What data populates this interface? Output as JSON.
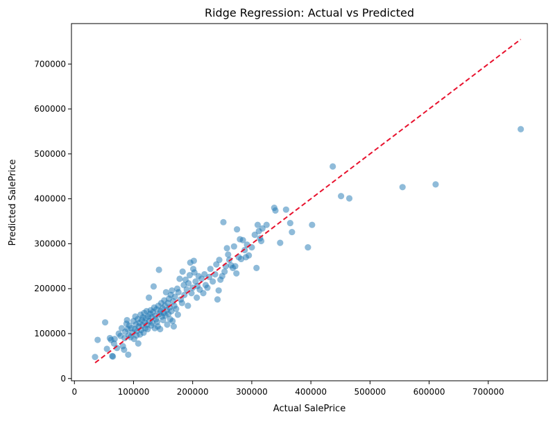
{
  "chart_data": {
    "type": "scatter",
    "title": "Ridge Regression: Actual vs Predicted",
    "xlabel": "Actual SalePrice",
    "ylabel": "Predicted SalePrice",
    "xlim": [
      -5000,
      800000
    ],
    "ylim": [
      -5000,
      790000
    ],
    "xticks": [
      0,
      100000,
      200000,
      300000,
      400000,
      500000,
      600000,
      700000
    ],
    "xtick_labels": [
      "0",
      "100000",
      "200000",
      "300000",
      "400000",
      "500000",
      "600000",
      "700000"
    ],
    "yticks": [
      0,
      100000,
      200000,
      300000,
      400000,
      500000,
      600000,
      700000
    ],
    "ytick_labels": [
      "0",
      "100000",
      "200000",
      "300000",
      "400000",
      "500000",
      "600000",
      "700000"
    ],
    "grid": false,
    "point_color": "#1f77b4",
    "point_alpha": 0.5,
    "reference_line": {
      "style": "dashed",
      "color": "#e8112d",
      "from": [
        35000,
        35000
      ],
      "to": [
        755000,
        755000
      ]
    },
    "points": [
      [
        34900,
        48000
      ],
      [
        39300,
        86000
      ],
      [
        52000,
        125000
      ],
      [
        55000,
        66000
      ],
      [
        60000,
        90000
      ],
      [
        62000,
        86000
      ],
      [
        64000,
        50000
      ],
      [
        65000,
        49000
      ],
      [
        67000,
        78000
      ],
      [
        68000,
        88000
      ],
      [
        72000,
        68000
      ],
      [
        75000,
        100000
      ],
      [
        78000,
        95000
      ],
      [
        80000,
        112000
      ],
      [
        82000,
        72000
      ],
      [
        84000,
        64000
      ],
      [
        85000,
        90000
      ],
      [
        86000,
        104000
      ],
      [
        88000,
        122000
      ],
      [
        89000,
        130000
      ],
      [
        90000,
        110000
      ],
      [
        91000,
        53000
      ],
      [
        92000,
        96000
      ],
      [
        93000,
        118000
      ],
      [
        95000,
        92000
      ],
      [
        96000,
        112000
      ],
      [
        98000,
        102000
      ],
      [
        100000,
        128000
      ],
      [
        101000,
        88000
      ],
      [
        102000,
        110000
      ],
      [
        103000,
        138000
      ],
      [
        104000,
        120000
      ],
      [
        105000,
        96000
      ],
      [
        106000,
        106000
      ],
      [
        107000,
        132000
      ],
      [
        108000,
        78000
      ],
      [
        109000,
        116000
      ],
      [
        110000,
        124000
      ],
      [
        111000,
        98000
      ],
      [
        112000,
        142000
      ],
      [
        113000,
        108000
      ],
      [
        114000,
        130000
      ],
      [
        115000,
        118000
      ],
      [
        116000,
        136000
      ],
      [
        117000,
        102000
      ],
      [
        118000,
        146000
      ],
      [
        119000,
        125000
      ],
      [
        120000,
        112000
      ],
      [
        121000,
        134000
      ],
      [
        122000,
        150000
      ],
      [
        123000,
        120000
      ],
      [
        124000,
        110000
      ],
      [
        125000,
        138000
      ],
      [
        126000,
        180000
      ],
      [
        127000,
        128000
      ],
      [
        128000,
        144000
      ],
      [
        129000,
        152000
      ],
      [
        130000,
        118000
      ],
      [
        131000,
        136000
      ],
      [
        132000,
        124000
      ],
      [
        133000,
        148000
      ],
      [
        134000,
        205000
      ],
      [
        135000,
        158000
      ],
      [
        136000,
        112000
      ],
      [
        137000,
        140000
      ],
      [
        138000,
        132000
      ],
      [
        139000,
        154000
      ],
      [
        140000,
        126000
      ],
      [
        141000,
        116000
      ],
      [
        142000,
        162000
      ],
      [
        143000,
        242000
      ],
      [
        144000,
        144000
      ],
      [
        145000,
        110000
      ],
      [
        146000,
        150000
      ],
      [
        147000,
        168000
      ],
      [
        148000,
        138000
      ],
      [
        149000,
        156000
      ],
      [
        150000,
        130000
      ],
      [
        151000,
        146000
      ],
      [
        152000,
        174000
      ],
      [
        153000,
        162000
      ],
      [
        154000,
        140000
      ],
      [
        155000,
        192000
      ],
      [
        156000,
        152000
      ],
      [
        157000,
        120000
      ],
      [
        158000,
        168000
      ],
      [
        159000,
        144000
      ],
      [
        160000,
        178000
      ],
      [
        161000,
        158000
      ],
      [
        162000,
        132000
      ],
      [
        163000,
        186000
      ],
      [
        164000,
        150000
      ],
      [
        165000,
        196000
      ],
      [
        166000,
        128000
      ],
      [
        167000,
        172000
      ],
      [
        168000,
        116000
      ],
      [
        169000,
        162000
      ],
      [
        170000,
        182000
      ],
      [
        172000,
        155000
      ],
      [
        174000,
        200000
      ],
      [
        175000,
        142000
      ],
      [
        176000,
        192000
      ],
      [
        178000,
        222000
      ],
      [
        180000,
        176000
      ],
      [
        182000,
        168000
      ],
      [
        183000,
        238000
      ],
      [
        185000,
        208000
      ],
      [
        186000,
        186000
      ],
      [
        188000,
        220000
      ],
      [
        190000,
        198000
      ],
      [
        192000,
        162000
      ],
      [
        193000,
        212000
      ],
      [
        195000,
        230000
      ],
      [
        196000,
        258000
      ],
      [
        198000,
        190000
      ],
      [
        200000,
        202000
      ],
      [
        201000,
        244000
      ],
      [
        202000,
        262000
      ],
      [
        203000,
        236000
      ],
      [
        205000,
        216000
      ],
      [
        207000,
        180000
      ],
      [
        208000,
        206000
      ],
      [
        210000,
        228000
      ],
      [
        212000,
        198000
      ],
      [
        215000,
        222000
      ],
      [
        218000,
        190000
      ],
      [
        220000,
        232000
      ],
      [
        222000,
        208000
      ],
      [
        225000,
        202000
      ],
      [
        228000,
        226000
      ],
      [
        230000,
        244000
      ],
      [
        234000,
        216000
      ],
      [
        238000,
        232000
      ],
      [
        240000,
        254000
      ],
      [
        242000,
        176000
      ],
      [
        244000,
        196000
      ],
      [
        245000,
        264000
      ],
      [
        247000,
        220000
      ],
      [
        250000,
        228000
      ],
      [
        252000,
        348000
      ],
      [
        254000,
        238000
      ],
      [
        256000,
        250000
      ],
      [
        258000,
        290000
      ],
      [
        260000,
        276000
      ],
      [
        262000,
        264000
      ],
      [
        265000,
        252000
      ],
      [
        268000,
        246000
      ],
      [
        270000,
        294000
      ],
      [
        272000,
        250000
      ],
      [
        274000,
        234000
      ],
      [
        275000,
        332000
      ],
      [
        278000,
        270000
      ],
      [
        280000,
        310000
      ],
      [
        282000,
        266000
      ],
      [
        285000,
        308000
      ],
      [
        288000,
        286000
      ],
      [
        290000,
        270000
      ],
      [
        292000,
        298000
      ],
      [
        295000,
        274000
      ],
      [
        300000,
        292000
      ],
      [
        305000,
        320000
      ],
      [
        308000,
        246000
      ],
      [
        310000,
        342000
      ],
      [
        312000,
        328000
      ],
      [
        314000,
        312000
      ],
      [
        316000,
        306000
      ],
      [
        318000,
        334000
      ],
      [
        325000,
        342000
      ],
      [
        338000,
        380000
      ],
      [
        340000,
        374000
      ],
      [
        348000,
        302000
      ],
      [
        358000,
        376000
      ],
      [
        365000,
        346000
      ],
      [
        368000,
        326000
      ],
      [
        395000,
        292000
      ],
      [
        402000,
        342000
      ],
      [
        437000,
        472000
      ],
      [
        451000,
        406000
      ],
      [
        465000,
        401000
      ],
      [
        555000,
        426000
      ],
      [
        611000,
        432000
      ],
      [
        755000,
        555000
      ]
    ]
  }
}
